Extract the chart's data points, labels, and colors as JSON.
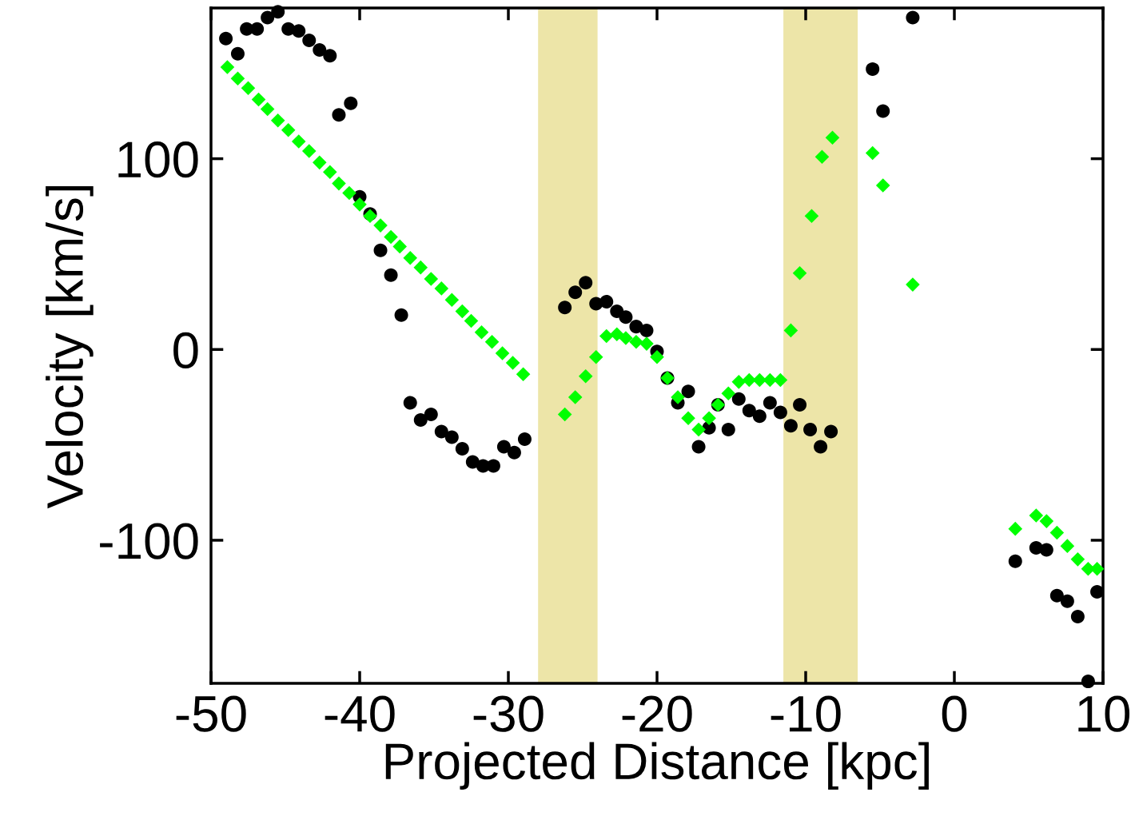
{
  "chart_data": {
    "type": "scatter",
    "xlabel": "Projected Distance [kpc]",
    "ylabel": "Velocity [km/s]",
    "xlim": [
      -50,
      10
    ],
    "ylim": [
      -175,
      179
    ],
    "xticks": [
      -50,
      -40,
      -30,
      -20,
      -10,
      0,
      10
    ],
    "yticks": [
      -100,
      0,
      100
    ],
    "grid": false,
    "bands": [
      {
        "axis": "x",
        "from": -28.0,
        "to": -24.0,
        "color": "#ede5a8"
      },
      {
        "axis": "x",
        "from": -11.5,
        "to": -6.5,
        "color": "#ede5a8"
      }
    ],
    "series": [
      {
        "color": "#000000",
        "marker": "circle",
        "x": [
          -49.0,
          -48.2,
          -47.6,
          -46.9,
          -46.2,
          -45.5,
          -44.8,
          -44.1,
          -43.4,
          -42.7,
          -42.0,
          -41.4,
          -40.6,
          -40.0,
          -39.3,
          -38.6,
          -37.9,
          -37.2,
          -36.6,
          -35.9,
          -35.2,
          -34.5,
          -33.8,
          -33.1,
          -32.4,
          -31.7,
          -31.0,
          -30.3,
          -29.6,
          -28.9,
          -26.2,
          -25.5,
          -24.8,
          -24.1,
          -23.4,
          -22.7,
          -22.1,
          -21.4,
          -20.7,
          -20.0,
          -19.3,
          -18.6,
          -17.9,
          -17.2,
          -16.5,
          -15.9,
          -15.2,
          -14.5,
          -13.8,
          -13.1,
          -12.4,
          -11.7,
          -11.0,
          -10.4,
          -9.7,
          -9.0,
          -8.3,
          -5.5,
          -4.8,
          -2.8,
          4.1,
          5.5,
          6.2,
          6.9,
          7.6,
          8.3,
          9.0,
          9.6
        ],
        "values": [
          163,
          155,
          168,
          168,
          174,
          177,
          168,
          167,
          162,
          157,
          154,
          123,
          129,
          80,
          71,
          52,
          39,
          18,
          -28,
          -37,
          -34,
          -43,
          -46,
          -52,
          -59,
          -61,
          -61,
          -51,
          -54,
          -47,
          22,
          30,
          35,
          24,
          25,
          20,
          17,
          12,
          10,
          -1,
          -15,
          -28,
          -22,
          -51,
          -41,
          -29,
          -42,
          -26,
          -32,
          -35,
          -28,
          -33,
          -40,
          -29,
          -42,
          -51,
          -43,
          147,
          125,
          174,
          -111,
          -104,
          -105,
          -129,
          -132,
          -140,
          -174,
          -127
        ]
      },
      {
        "color": "#00ff00",
        "marker": "diamond",
        "x": [
          -48.9,
          -48.2,
          -47.5,
          -46.8,
          -46.2,
          -45.5,
          -44.8,
          -44.1,
          -43.4,
          -42.7,
          -42.0,
          -41.4,
          -40.7,
          -40.0,
          -39.3,
          -38.6,
          -37.9,
          -37.3,
          -36.6,
          -35.9,
          -35.2,
          -34.5,
          -33.8,
          -33.1,
          -32.5,
          -31.8,
          -31.1,
          -30.4,
          -29.7,
          -29.0,
          -26.2,
          -25.5,
          -24.8,
          -24.1,
          -23.4,
          -22.7,
          -22.1,
          -21.4,
          -20.7,
          -20.0,
          -19.3,
          -18.6,
          -17.9,
          -17.2,
          -16.5,
          -15.9,
          -15.2,
          -14.5,
          -13.8,
          -13.1,
          -12.4,
          -11.7,
          -11.0,
          -10.4,
          -9.6,
          -8.9,
          -8.2,
          -5.5,
          -4.8,
          -2.8,
          4.1,
          5.5,
          6.2,
          6.9,
          7.6,
          8.3,
          9.0,
          9.6
        ],
        "values": [
          148,
          142,
          137,
          131,
          126,
          120,
          115,
          109,
          104,
          98,
          93,
          87,
          82,
          76,
          70,
          65,
          59,
          54,
          48,
          43,
          37,
          32,
          26,
          20,
          15,
          9,
          4,
          -2,
          -7,
          -13,
          -34,
          -25,
          -14,
          -4,
          7,
          8,
          6,
          4,
          3,
          -4,
          -15,
          -25,
          -36,
          -42,
          -36,
          -29,
          -23,
          -17,
          -16,
          -16,
          -16,
          -16,
          10,
          40,
          70,
          101,
          111,
          103,
          86,
          34,
          -94,
          -87,
          -90,
          -96,
          -103,
          -110,
          -115,
          -115
        ]
      }
    ]
  }
}
